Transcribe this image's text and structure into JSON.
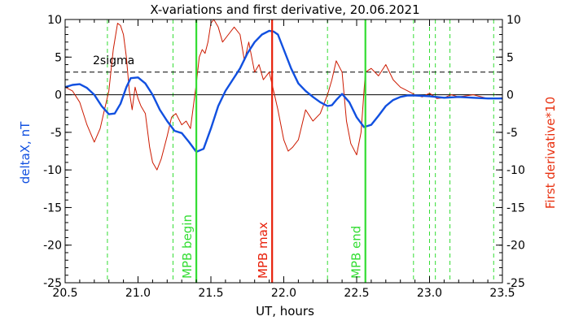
{
  "chart_data": {
    "type": "line",
    "title": "X-variations and first derivative, 20.06.2021",
    "xlabel": "UT, hours",
    "ylabel_left": "deltaX, nT",
    "ylabel_right": "First derivative*10",
    "xlim": [
      20.5,
      23.5
    ],
    "ylim_left": [
      -25,
      10
    ],
    "ylim_right": [
      -25,
      10
    ],
    "x_ticks": [
      20.5,
      21.0,
      21.5,
      22.0,
      22.5,
      23.0,
      23.5
    ],
    "x_tick_labels": [
      "20.5",
      "21.0",
      "21.5",
      "22.0",
      "22.5",
      "23.0",
      "23.5"
    ],
    "y_ticks": [
      10,
      5,
      0,
      -5,
      -10,
      -15,
      -20,
      -25
    ],
    "y_tick_labels": [
      "10",
      "5",
      "0",
      "-5",
      "-10",
      "-15",
      "-20",
      "-25"
    ],
    "colors": {
      "deltaX": "#1150e0",
      "derivative": "#cc1a00",
      "ylabel_left": "#1150e0",
      "ylabel_right": "#e8300f",
      "mpb_max": "#e8200a",
      "mpb_lines": "#33dd33",
      "dashed_green": "#33dd33"
    },
    "sigma": {
      "label": "2sigma",
      "value": 3.0
    },
    "zero_line": 0,
    "markers": [
      {
        "x": 21.4,
        "label": "MPB begin",
        "kind": "mpb"
      },
      {
        "x": 21.92,
        "label": "MPB max",
        "kind": "max"
      },
      {
        "x": 22.56,
        "label": "MPB end",
        "kind": "mpb"
      }
    ],
    "dashed_lines": [
      20.79,
      21.24,
      22.3,
      22.89,
      23.0,
      23.04,
      23.14,
      23.44
    ],
    "series": [
      {
        "name": "deltaX, nT",
        "axis": "left",
        "x": [
          20.5,
          20.55,
          20.6,
          20.65,
          20.7,
          20.75,
          20.8,
          20.84,
          20.88,
          20.92,
          20.95,
          21.0,
          21.05,
          21.1,
          21.15,
          21.2,
          21.25,
          21.3,
          21.35,
          21.4,
          21.45,
          21.5,
          21.55,
          21.6,
          21.65,
          21.7,
          21.75,
          21.8,
          21.85,
          21.9,
          21.93,
          21.96,
          22.0,
          22.05,
          22.1,
          22.15,
          22.2,
          22.25,
          22.3,
          22.33,
          22.36,
          22.4,
          22.45,
          22.5,
          22.55,
          22.6,
          22.65,
          22.7,
          22.75,
          22.8,
          22.85,
          22.9,
          23.0,
          23.1,
          23.2,
          23.3,
          23.4,
          23.5
        ],
        "y": [
          1.0,
          1.3,
          1.4,
          0.9,
          0.0,
          -1.5,
          -2.6,
          -2.5,
          -1.2,
          1.0,
          2.2,
          2.3,
          1.5,
          0.0,
          -2.0,
          -3.5,
          -4.8,
          -5.1,
          -6.3,
          -7.6,
          -7.2,
          -4.5,
          -1.5,
          0.5,
          2.0,
          3.5,
          5.5,
          7.0,
          8.0,
          8.5,
          8.4,
          8.0,
          6.0,
          3.5,
          1.5,
          0.5,
          -0.3,
          -1.0,
          -1.5,
          -1.4,
          -0.7,
          0.1,
          -1.0,
          -3.0,
          -4.3,
          -4.0,
          -2.8,
          -1.5,
          -0.7,
          -0.3,
          -0.1,
          -0.1,
          -0.2,
          -0.4,
          -0.3,
          -0.4,
          -0.5,
          -0.5
        ]
      },
      {
        "name": "First derivative*10",
        "axis": "right",
        "x": [
          20.5,
          20.55,
          20.6,
          20.65,
          20.7,
          20.74,
          20.77,
          20.8,
          20.83,
          20.86,
          20.88,
          20.9,
          20.92,
          20.94,
          20.96,
          20.98,
          21.0,
          21.02,
          21.05,
          21.08,
          21.1,
          21.13,
          21.16,
          21.2,
          21.23,
          21.26,
          21.3,
          21.33,
          21.36,
          21.4,
          21.42,
          21.44,
          21.46,
          21.48,
          21.5,
          21.52,
          21.55,
          21.58,
          21.62,
          21.66,
          21.7,
          21.73,
          21.76,
          21.8,
          21.83,
          21.86,
          21.9,
          21.93,
          21.96,
          22.0,
          22.03,
          22.06,
          22.1,
          22.15,
          22.2,
          22.25,
          22.3,
          22.33,
          22.36,
          22.4,
          22.43,
          22.46,
          22.5,
          22.53,
          22.56,
          22.6,
          22.65,
          22.7,
          22.75,
          22.8,
          22.85,
          22.9,
          22.95,
          23.0,
          23.05,
          23.1,
          23.15,
          23.2,
          23.3,
          23.4,
          23.5
        ],
        "y": [
          1.0,
          0.5,
          -1.0,
          -4.0,
          -6.3,
          -4.5,
          -2.0,
          0.5,
          6.0,
          9.5,
          9.2,
          8.0,
          5.0,
          0.5,
          -2.0,
          1.0,
          -0.5,
          -1.5,
          -2.5,
          -7.0,
          -9.0,
          -10.0,
          -8.5,
          -5.5,
          -3.0,
          -2.5,
          -4.0,
          -3.5,
          -4.5,
          1.5,
          5.0,
          6.0,
          5.5,
          7.0,
          9.5,
          10.0,
          9.0,
          7.0,
          8.0,
          9.0,
          8.0,
          4.5,
          7.0,
          3.0,
          4.0,
          2.0,
          3.0,
          0.5,
          -2.0,
          -6.0,
          -7.5,
          -7.0,
          -6.0,
          -2.0,
          -3.5,
          -2.5,
          0.0,
          2.0,
          4.5,
          3.0,
          -3.5,
          -6.5,
          -8.0,
          -5.0,
          3.0,
          3.5,
          2.5,
          4.0,
          2.0,
          1.0,
          0.5,
          0.0,
          -0.3,
          0.2,
          -0.5,
          -0.4,
          0.0,
          -0.3,
          0.0,
          -0.5,
          -0.4
        ]
      }
    ]
  }
}
